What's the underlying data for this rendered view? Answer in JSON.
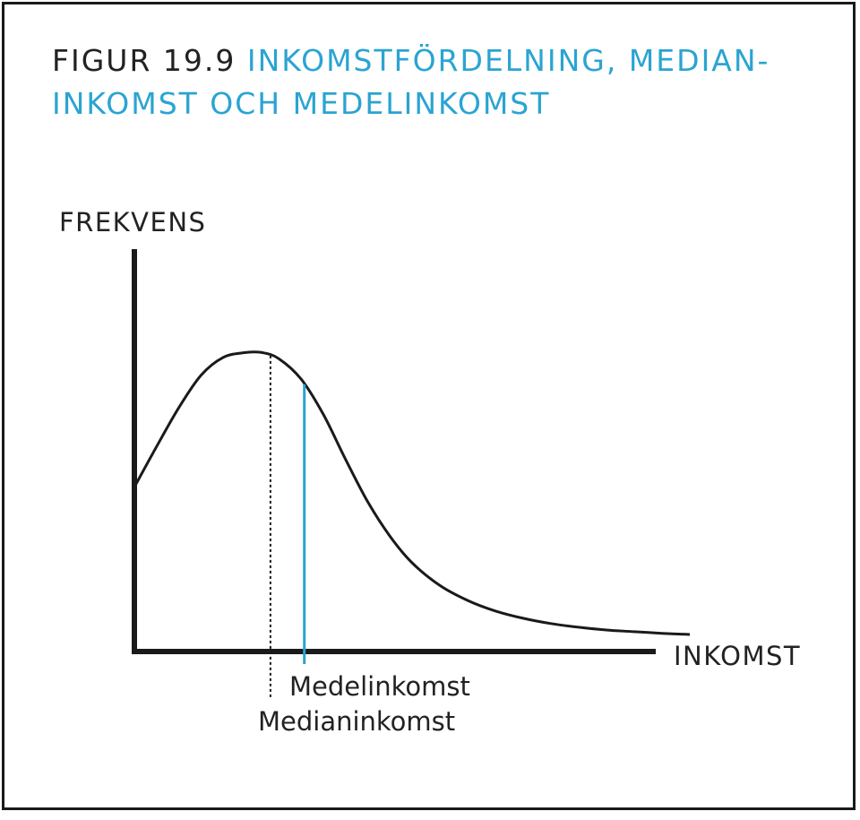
{
  "title": {
    "figure_label": "FIGUR 19.9",
    "line1": "INKOMSTFÖRDELNING, MEDIAN-",
    "line2": "INKOMST OCH MEDELINKOMST"
  },
  "colors": {
    "accent": "#2aa4d2",
    "ink": "#1a1a1a"
  },
  "chart_data": {
    "type": "line",
    "title": "FIGUR 19.9 INKOMSTFÖRDELNING, MEDIANINKOMST OCH MEDELINKOMST",
    "xlabel": "INKOMST",
    "ylabel": "FREKVENS",
    "xlim": [
      0,
      100
    ],
    "ylim": [
      0,
      100
    ],
    "grid": false,
    "legend": "none",
    "series": [
      {
        "x": [
          0,
          4,
          8,
          12,
          16,
          20,
          23,
          26,
          30,
          34,
          38,
          42,
          46,
          50,
          55,
          60,
          65,
          70,
          75,
          80,
          85,
          90,
          95,
          100
        ],
        "y": [
          40.6,
          50.6,
          60.2,
          68.2,
          72.6,
          73.8,
          73.8,
          72.3,
          67.3,
          58.6,
          47.5,
          37.0,
          28.5,
          21.9,
          16.3,
          12.6,
          10.0,
          8.2,
          6.9,
          6.0,
          5.3,
          4.9,
          4.5,
          4.2
        ]
      }
    ],
    "annotations": [
      {
        "label": "Medianinkomst",
        "x": 24.5,
        "style": "dotted"
      },
      {
        "label": "Medelinkomst",
        "x": 30.6,
        "style": "solid-accent"
      }
    ]
  }
}
